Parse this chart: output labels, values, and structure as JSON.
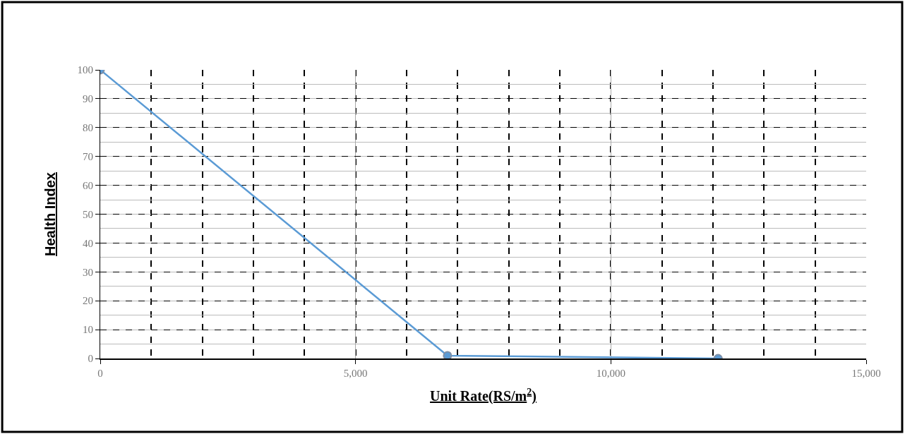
{
  "chart_data": {
    "type": "line",
    "xlabel": "Unit Rate(RS/m$^{2}$)",
    "ylabel": "Health Index",
    "x": [
      0,
      6800,
      12100
    ],
    "series": [
      {
        "color": "#5b9bd5",
        "values": [
          100,
          1,
          0
        ]
      }
    ],
    "xlim": [
      0,
      15000
    ],
    "xticks": [
      0,
      {
        "value": 5000,
        "label": "5,000"
      },
      {
        "value": 10000,
        "label": "10,000"
      },
      {
        "value": 15000,
        "label": "15,000"
      }
    ],
    "ylim": [
      0,
      100
    ],
    "yticks": [
      0,
      10,
      20,
      30,
      40,
      50,
      60,
      70,
      80,
      90,
      100
    ],
    "grid": true,
    "marker": "circle",
    "line_style": "solid"
  }
}
